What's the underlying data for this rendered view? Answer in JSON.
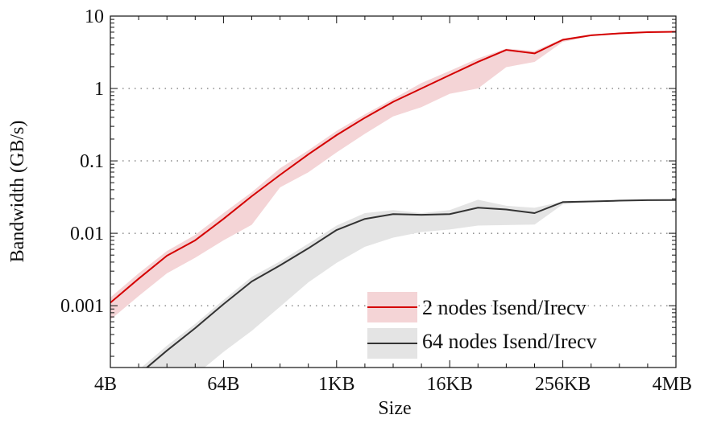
{
  "chart_data": {
    "type": "line",
    "title": "",
    "xlabel": "Size",
    "ylabel": "Bandwidth (GB/s)",
    "x_scale": "log2",
    "y_scale": "log10",
    "x": [
      "4B",
      "8B",
      "16B",
      "32B",
      "64B",
      "128B",
      "256B",
      "512B",
      "1KB",
      "2KB",
      "4KB",
      "8KB",
      "16KB",
      "32KB",
      "64KB",
      "128KB",
      "256KB",
      "512KB",
      "1MB",
      "2MB",
      "4MB"
    ],
    "x_tick_labels": [
      "4B",
      "64B",
      "1KB",
      "16KB",
      "256KB",
      "4MB"
    ],
    "y_tick_labels": [
      "10",
      "1",
      "0.1",
      "0.01",
      "0.001"
    ],
    "ylim": [
      0.00014,
      10
    ],
    "grid": "horizontal dotted at decades",
    "legend": "bottom-right",
    "series": [
      {
        "name": "2 nodes Isend/Irecv",
        "color": "#d40000",
        "band_color": "#f4d4d6",
        "values": [
          0.0011,
          0.00236,
          0.0049,
          0.008,
          0.0158,
          0.0325,
          0.064,
          0.123,
          0.227,
          0.394,
          0.654,
          1.0,
          1.53,
          2.33,
          3.41,
          3.05,
          4.7,
          5.43,
          5.77,
          6.0,
          6.07
        ],
        "lower": [
          0.00064,
          0.00136,
          0.0028,
          0.0046,
          0.008,
          0.0131,
          0.043,
          0.0695,
          0.131,
          0.237,
          0.411,
          0.553,
          0.844,
          1.0,
          1.97,
          2.33,
          4.4,
          5.3,
          5.7,
          5.95,
          6.0
        ],
        "upper": [
          0.0013,
          0.0028,
          0.0057,
          0.0095,
          0.019,
          0.037,
          0.079,
          0.14,
          0.26,
          0.44,
          0.72,
          1.19,
          1.75,
          2.6,
          3.56,
          3.3,
          4.9,
          5.55,
          5.85,
          6.05,
          6.12
        ]
      },
      {
        "name": "64 nodes Isend/Irecv",
        "color": "#333333",
        "band_color": "#e4e4e4",
        "values": [
          null,
          0.000112,
          0.00024,
          0.00049,
          0.00105,
          0.00216,
          0.0036,
          0.0062,
          0.0111,
          0.0158,
          0.0184,
          0.018,
          0.0184,
          0.0226,
          0.0213,
          0.019,
          0.027,
          0.0275,
          0.0282,
          0.0287,
          0.0288
        ],
        "lower": [
          null,
          5e-05,
          6e-05,
          0.00011,
          0.00023,
          0.00045,
          0.00097,
          0.0021,
          0.0039,
          0.0065,
          0.0087,
          0.0104,
          0.0113,
          0.0128,
          0.013,
          0.0132,
          0.0251,
          0.027,
          0.0278,
          0.0284,
          0.0286
        ],
        "upper": [
          null,
          0.00013,
          0.00028,
          0.00056,
          0.0012,
          0.0025,
          0.0041,
          0.0072,
          0.0128,
          0.019,
          0.0209,
          0.019,
          0.0209,
          0.0291,
          0.024,
          0.0225,
          0.0275,
          0.028,
          0.0286,
          0.029,
          0.029
        ]
      }
    ]
  }
}
